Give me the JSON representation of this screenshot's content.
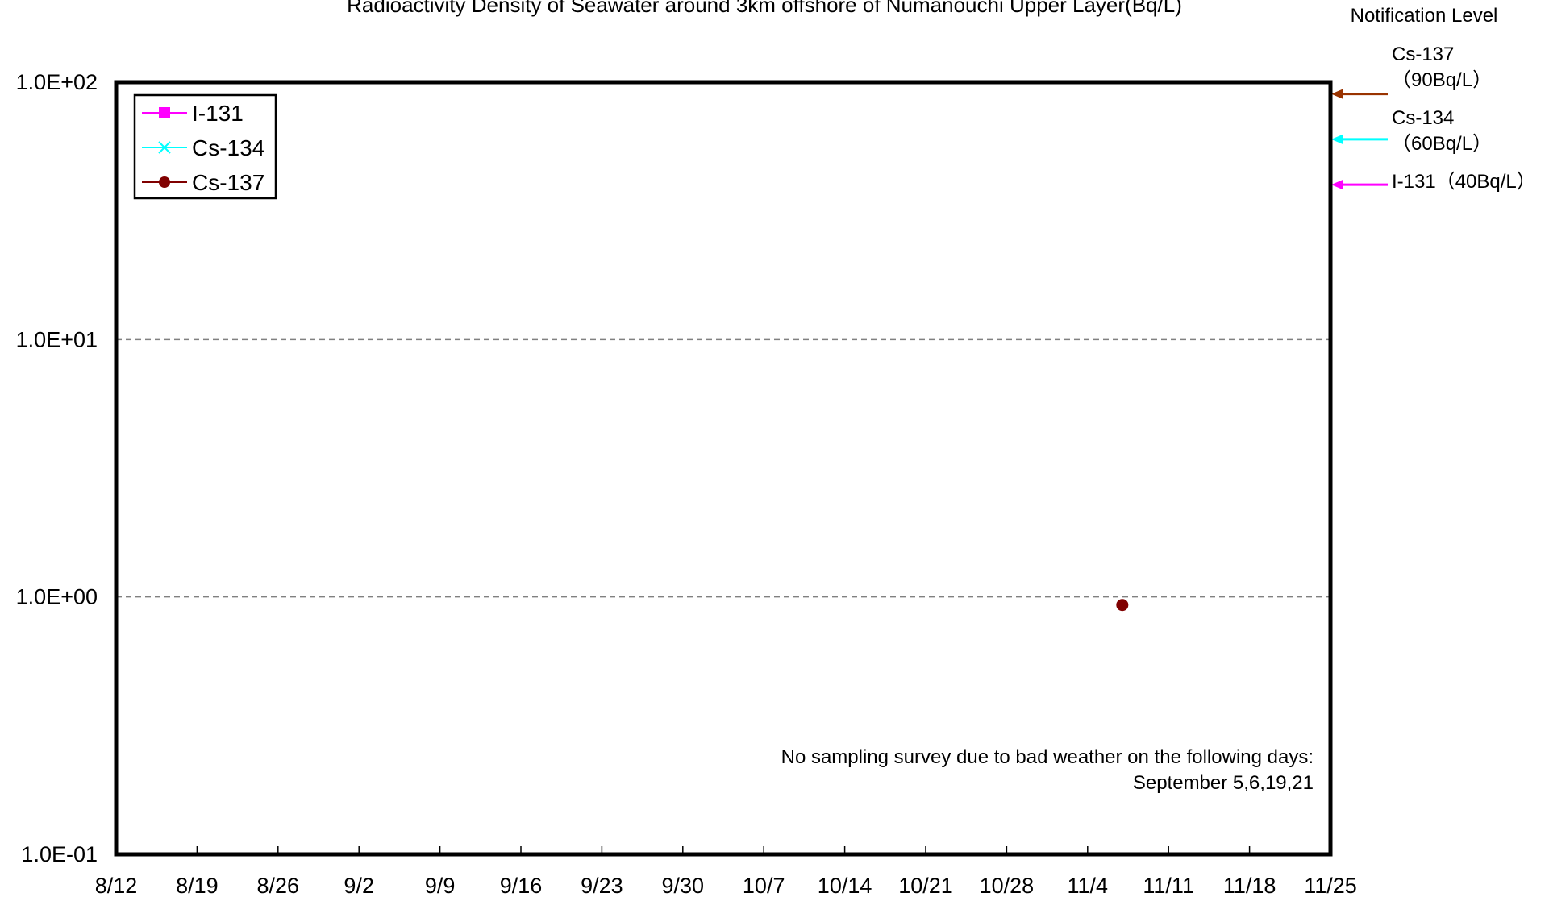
{
  "chart_data": {
    "type": "scatter",
    "title": "Radioactivity Density of Seawater around 3km offshore of Numanouchi Upper Layer(Bq/L)",
    "xlabel": "",
    "ylabel": "",
    "y_scale": "log",
    "ylim": [
      0.1,
      100
    ],
    "y_ticks": [
      {
        "value": 100,
        "label": "1.0E+02"
      },
      {
        "value": 10,
        "label": "1.0E+01"
      },
      {
        "value": 1,
        "label": "1.0E+00"
      },
      {
        "value": 0.1,
        "label": "1.0E-01"
      }
    ],
    "xlim": [
      "8/12",
      "11/25"
    ],
    "x_ticks": [
      "8/12",
      "8/19",
      "8/26",
      "9/2",
      "9/9",
      "9/16",
      "9/23",
      "9/30",
      "10/7",
      "10/14",
      "10/21",
      "10/28",
      "11/4",
      "11/11",
      "11/18",
      "11/25"
    ],
    "grid": "horizontal dashed at 1.0E+00 and 1.0E+01",
    "legend_placement": "top-left",
    "series": [
      {
        "name": "I-131",
        "color": "#ff00ff",
        "marker": "square",
        "points": []
      },
      {
        "name": "Cs-134",
        "color": "#00ffff",
        "marker": "x",
        "points": []
      },
      {
        "name": "Cs-137",
        "color": "#800000",
        "marker": "circle",
        "points": [
          {
            "x": "11/7",
            "y": 0.93
          }
        ]
      }
    ],
    "notification_level": {
      "title": "Notification Level",
      "levels": [
        {
          "nuclide": "Cs-137",
          "label": "Cs-137",
          "value_label": "（90Bq/L）",
          "value": 90,
          "color": "#993300"
        },
        {
          "nuclide": "Cs-134",
          "label": "Cs-134",
          "value_label": "（60Bq/L）",
          "value": 60,
          "color": "#00ffff"
        },
        {
          "nuclide": "I-131",
          "label": "I-131（40Bq/L）",
          "value_label": "",
          "value": 40,
          "color": "#ff00ff"
        }
      ]
    },
    "annotations": [
      "No sampling survey due to bad weather on the following days:",
      "September 5,6,19,21"
    ]
  }
}
